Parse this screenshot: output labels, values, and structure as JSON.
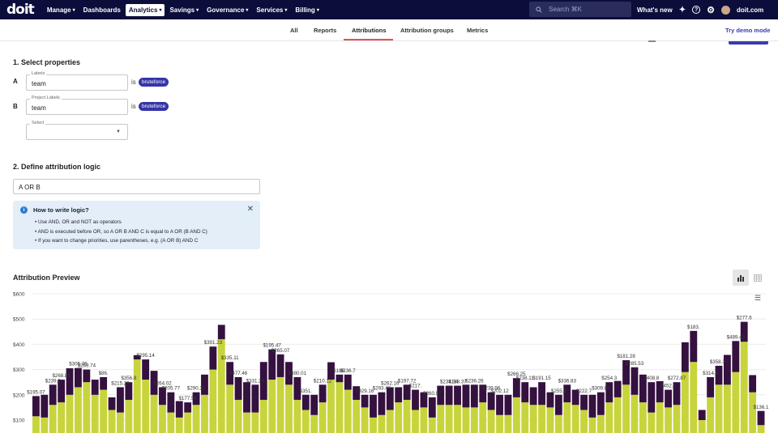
{
  "nav": {
    "logo_text": "doit",
    "items": [
      {
        "label": "Manage",
        "has_menu": true,
        "active": false
      },
      {
        "label": "Dashboards",
        "has_menu": false,
        "active": false
      },
      {
        "label": "Analytics",
        "has_menu": true,
        "active": true
      },
      {
        "label": "Savings",
        "has_menu": true,
        "active": false
      },
      {
        "label": "Governance",
        "has_menu": true,
        "active": false
      },
      {
        "label": "Services",
        "has_menu": true,
        "active": false
      },
      {
        "label": "Billing",
        "has_menu": true,
        "active": false
      }
    ],
    "search_placeholder": "Search ⌘K",
    "whats_new": "What's new",
    "account": "doit.com"
  },
  "tabs": [
    {
      "label": "All",
      "active": false
    },
    {
      "label": "Reports",
      "active": false
    },
    {
      "label": "Attributions",
      "active": true
    },
    {
      "label": "Attribution groups",
      "active": false
    },
    {
      "label": "Metrics",
      "active": false
    }
  ],
  "try_demo": "Try demo mode",
  "section1": {
    "title": "1. Select properties",
    "rows": [
      {
        "letter": "A",
        "field_label": "Labels",
        "field_value": "team",
        "is": "is",
        "chip": "bruteforce"
      },
      {
        "letter": "B",
        "field_label": "Project Labels",
        "field_value": "team",
        "is": "is",
        "chip": "bruteforce"
      }
    ],
    "select_label": "Select"
  },
  "section2": {
    "title": "2. Define attribution logic",
    "logic_value": "A OR B",
    "help_title": "How to write logic?",
    "help_items": [
      "Use AND, OR and NOT as operators",
      "AND is executed before OR, so A OR B AND C is equal to A OR (B AND C)",
      "If you want to change priorities, use parentheses, e.g. (A OR B) AND C"
    ]
  },
  "preview_title": "Attribution Preview",
  "colors": {
    "series_bottom": "#c8d43c",
    "series_top": "#35113f",
    "accent": "#3535a8",
    "nav_bg": "#0b0d3b"
  },
  "chart_data": {
    "type": "bar",
    "stacked": true,
    "ylabel_ticks": [
      "$100",
      "$200",
      "$300",
      "$400",
      "$500",
      "$600"
    ],
    "ylim": [
      0,
      600
    ],
    "series": [
      {
        "values": [
          115,
          110,
          160,
          170,
          200,
          230,
          250,
          200,
          220,
          140,
          130,
          180,
          340,
          260,
          200,
          160,
          130,
          110,
          130,
          160,
          200,
          300,
          420,
          240,
          180,
          130,
          130,
          180,
          260,
          270,
          240,
          180,
          140,
          120,
          170,
          260,
          250,
          220,
          180,
          150,
          110,
          120,
          140,
          170,
          180,
          140,
          150,
          110,
          160,
          160,
          160,
          150,
          150,
          170,
          140,
          120,
          120,
          190,
          170,
          160,
          160,
          150,
          120,
          170,
          160,
          140,
          110,
          120,
          170,
          190,
          240,
          200,
          170,
          130,
          170,
          150,
          160,
          290,
          330,
          100,
          190,
          240,
          240,
          290,
          410,
          210,
          80
        ]
      },
      {
        "values": [
          80,
          90,
          80,
          90,
          105,
          76,
          50,
          60,
          50,
          50,
          100,
          70,
          17,
          80,
          95,
          70,
          80,
          65,
          40,
          50,
          80,
          91,
          57,
          90,
          90,
          120,
          110,
          150,
          120,
          90,
          90,
          90,
          60,
          80,
          70,
          69,
          30,
          60,
          54,
          50,
          90,
          90,
          90,
          60,
          60,
          80,
          60,
          80,
          76,
          76,
          76,
          90,
          90,
          70,
          70,
          80,
          80,
          76,
          80,
          70,
          90,
          60,
          80,
          70,
          60,
          60,
          90,
          90,
          80,
          65,
          97,
          109,
          110,
          120,
          84,
          70,
          90,
          118,
          123,
          40,
          80,
          75,
          118,
          123,
          79,
          68,
          56
        ]
      }
    ],
    "data_labels": [
      "$195.07",
      "$239.2",
      "$268.86",
      "$305.76",
      "$269.74",
      "$86.",
      "$215.23",
      "$356.8",
      "$295.14",
      "$264.02",
      "$205.77",
      "$177.54",
      "$290.32",
      "$391.23",
      "$335.11",
      "$477.46",
      "$331.28",
      "$195.47",
      "$265.07",
      "$380.01",
      "$351.",
      "$210.12",
      "$186.",
      "$236.7",
      "$329.16",
      "$293.46",
      "$262.16",
      "$197.72",
      "$217.",
      "$260.97",
      "$234.34",
      "$188.37",
      "$236.26",
      "$239.96",
      "$202.12",
      "$266.25",
      "$238.11",
      "$191.15",
      "$255.6",
      "$336.83",
      "$222.7",
      "$309.89",
      "$254.3",
      "$181.28",
      "$285.53",
      "$408.8",
      "$452.7",
      "$272.87",
      "$183.",
      "$314.8",
      "$358.37",
      "$489.43",
      "$277.6",
      "$136.1"
    ]
  }
}
